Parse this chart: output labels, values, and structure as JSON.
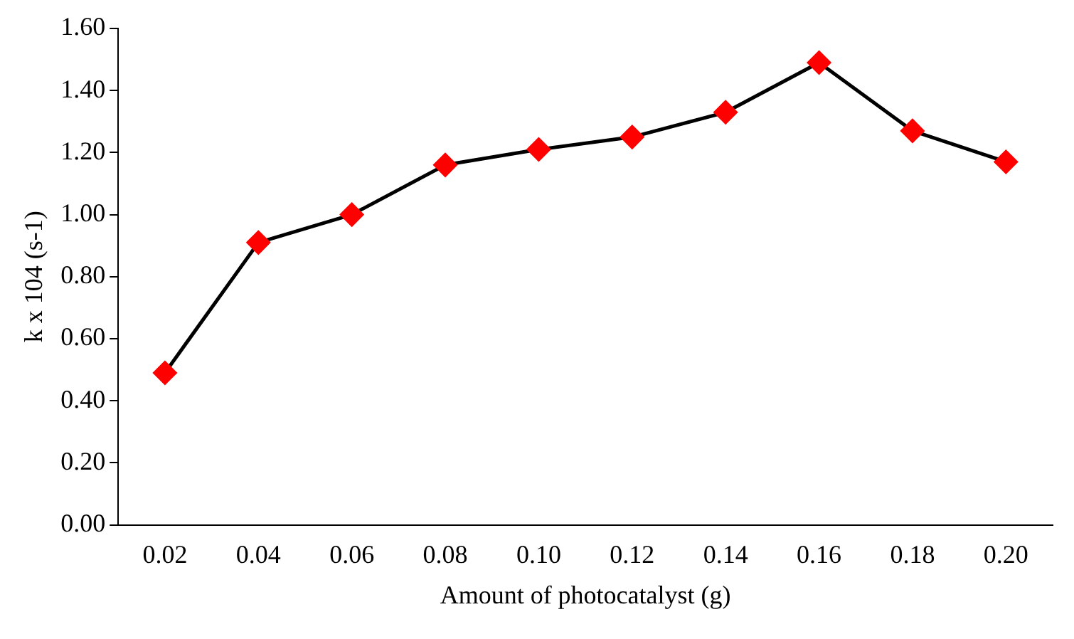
{
  "chart_data": {
    "type": "line",
    "xlabel": "Amount of photocatalyst (g)",
    "ylabel": "k x 104 (s-1)",
    "categories": [
      "0.02",
      "0.04",
      "0.06",
      "0.08",
      "0.10",
      "0.12",
      "0.14",
      "0.16",
      "0.18",
      "0.20"
    ],
    "series": [
      {
        "color": "#000000",
        "colors": [
          "#ff0000",
          "#ff0000",
          "#ff0000",
          "#ff0000",
          "#ff0000",
          "#ff0000",
          "#ff0000",
          "#ff0000",
          "#ff0000",
          "#ff0000"
        ],
        "values": [
          0.49,
          0.91,
          1.0,
          1.16,
          1.21,
          1.25,
          1.33,
          1.49,
          1.27,
          1.17
        ]
      }
    ],
    "ylim": [
      0,
      1.6
    ],
    "yticks": [
      {
        "value": 0,
        "label": "0.00"
      },
      {
        "value": 0.2,
        "label": "0.20"
      },
      {
        "value": 0.4,
        "label": "0.40"
      },
      {
        "value": 0.6,
        "label": "0.60"
      },
      {
        "value": 0.8,
        "label": "0.80"
      },
      {
        "value": 1.0,
        "label": "1.00"
      },
      {
        "value": 1.2,
        "label": "1.20"
      },
      {
        "value": 1.4,
        "label": "1.40"
      },
      {
        "value": 1.6,
        "label": "1.60"
      }
    ],
    "grid": false,
    "legend": false,
    "marker": "diamond",
    "line_style": "solid"
  }
}
